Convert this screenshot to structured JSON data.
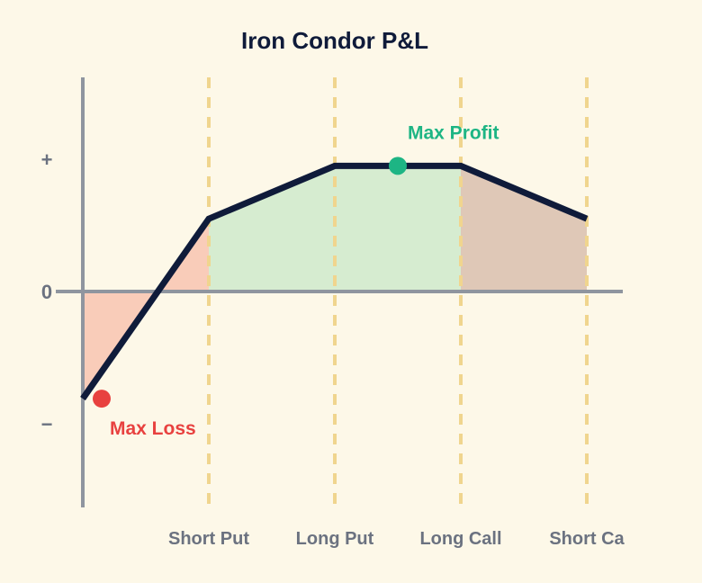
{
  "chart_data": {
    "type": "line",
    "title": "Iron Condor P&L",
    "xlabel": "",
    "ylabel": "",
    "y_tick_labels": [
      "+",
      "0",
      "−"
    ],
    "y_tick_values": [
      1,
      0,
      -1
    ],
    "ylim": [
      -1.6,
      1.6
    ],
    "xlim": [
      0,
      4
    ],
    "x_tick_labels": [
      "Short Put",
      "Long Put",
      "Long Call",
      "Short Ca"
    ],
    "x_tick_values": [
      1,
      2,
      3,
      4
    ],
    "series": [
      {
        "x": [
          0,
          1,
          2,
          3,
          4
        ],
        "y": [
          -0.81,
          0.55,
          0.95,
          0.95,
          0.55
        ],
        "color": "#0f1b3a"
      }
    ],
    "regions": [
      {
        "x_from": 0,
        "x_to": 1,
        "color": "#f8c4b0"
      },
      {
        "x_from": 1,
        "x_to": 3,
        "color": "#cfeacb"
      },
      {
        "x_from": 3,
        "x_to": 4,
        "color": "#d9bfae"
      }
    ],
    "annotations": [
      {
        "label": "Max Profit",
        "x": 2.5,
        "y": 0.95,
        "color": "#1db584"
      },
      {
        "label": "Max Loss",
        "x": 0.15,
        "y": -0.81,
        "color": "#e8413f"
      }
    ],
    "grid": false,
    "legend": "none",
    "colors": {
      "background": "#fdf8e8",
      "axis": "#8f959f",
      "guide": "#f0d58e",
      "line": "#0f1b3a",
      "title": "#0f1b3a",
      "tick": "#6b7280"
    }
  }
}
